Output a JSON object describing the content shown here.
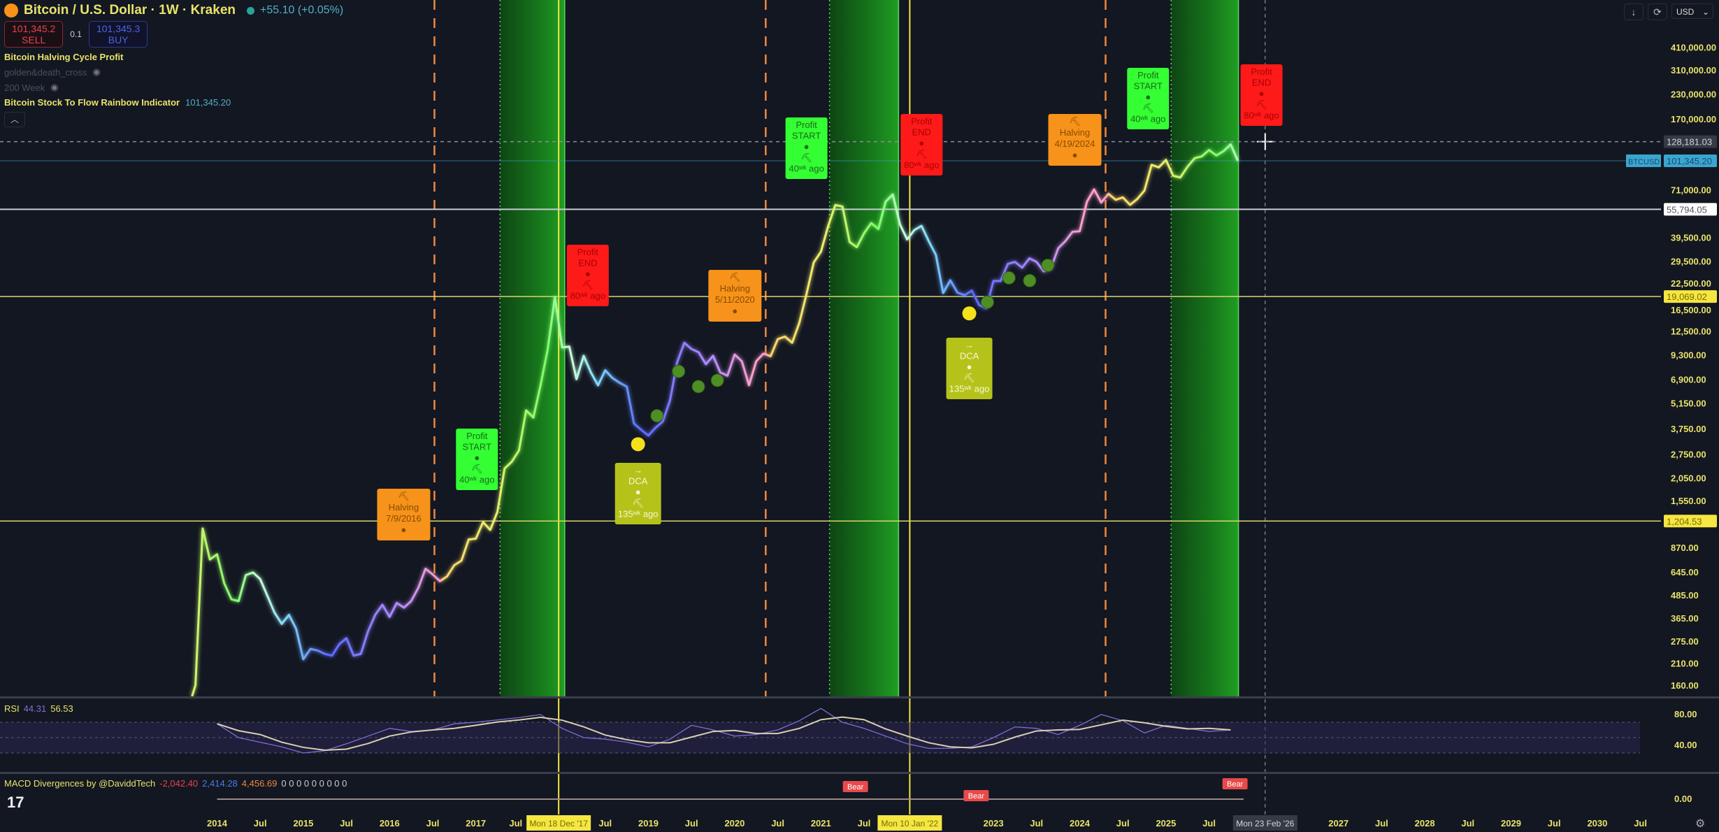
{
  "header": {
    "symbol_title": "Bitcoin / U.S. Dollar · 1W · Kraken",
    "change": "+55.10 (+0.05%)",
    "sell_price": "101,345.2",
    "sell_label": "SELL",
    "quantity": "0.1",
    "buy_price": "101,345.3",
    "buy_label": "BUY",
    "indicators": [
      {
        "name": "Bitcoin Halving Cycle Profit"
      },
      {
        "name": "golden&death_cross",
        "hidden": true
      },
      {
        "name": "200 Week",
        "hidden": true
      },
      {
        "name": "Bitcoin Stock To Flow Rainbow Indicator",
        "value": "101,345.20"
      }
    ]
  },
  "toolbar": {
    "currency": "USD"
  },
  "rsi": {
    "label": "RSI",
    "value1": "44.31",
    "value2": "56.53",
    "ticks": [
      "80.00",
      "40.00"
    ]
  },
  "macd": {
    "label": "MACD Divergences by @DaviddTech",
    "v1": "-2,042.40",
    "v2": "2,414.28",
    "v3": "4,456.69",
    "zeros": "0 0 0 0 0 0 0 0 0",
    "tick": "0.00",
    "bear_label": "Bear"
  },
  "colors": {
    "background": "#131722",
    "profit_zone": "#1fa81f",
    "halving_line": "#f0883e",
    "start_box": "#33ff33",
    "end_box": "#ff1a1a",
    "halving_box": "#f7931a",
    "dca_box": "#b5c21a",
    "axis_text": "#e8e36a"
  },
  "chart_data": {
    "type": "line",
    "yscale": "log",
    "ylim": [
      140,
      520000
    ],
    "xlim": [
      "2012-11",
      "2030-12"
    ],
    "price_ticks": [
      "410,000.00",
      "310,000.00",
      "230,000.00",
      "170,000.00",
      "71,000.00",
      "39,500.00",
      "29,500.00",
      "22,500.00",
      "16,500.00",
      "12,500.00",
      "9,300.00",
      "6,900.00",
      "5,150.00",
      "3,750.00",
      "2,750.00",
      "2,050.00",
      "1,550.00",
      "870.00",
      "645.00",
      "485.00",
      "365.00",
      "275.00",
      "210.00",
      "160.00"
    ],
    "price_tick_values": [
      410000,
      310000,
      230000,
      170000,
      71000,
      39500,
      29500,
      22500,
      16500,
      12500,
      9300,
      6900,
      5150,
      3750,
      2750,
      2050,
      1550,
      870,
      645,
      485,
      365,
      275,
      210,
      160
    ],
    "time_ticks": [
      "2014",
      "Jul",
      "2015",
      "Jul",
      "2016",
      "Jul",
      "2017",
      "Jul",
      "Jul",
      "2019",
      "Jul",
      "2020",
      "Jul",
      "2021",
      "Jul",
      "2023",
      "Jul",
      "2024",
      "Jul",
      "2025",
      "Jul",
      "2027",
      "Jul",
      "2028",
      "Jul",
      "2029",
      "Jul",
      "2030",
      "Jul"
    ],
    "time_tick_values": [
      2014,
      2014.5,
      2015,
      2015.5,
      2016,
      2016.5,
      2017,
      2017.5,
      2018.5,
      2019,
      2019.5,
      2020,
      2020.5,
      2021,
      2021.5,
      2023,
      2023.5,
      2024,
      2024.5,
      2025,
      2025.5,
      2027,
      2027.5,
      2028,
      2028.5,
      2029,
      2029.5,
      2030,
      2030.5
    ],
    "price_labels": [
      {
        "text": "128,181.03",
        "value": 128181.03,
        "style": "crosshair"
      },
      {
        "text": "101,345.20",
        "value": 101345.2,
        "style": "last",
        "tag": "BTCUSD"
      },
      {
        "text": "55,794.05",
        "value": 55794.05,
        "style": "white-line"
      },
      {
        "text": "19,069.02",
        "value": 19069.02,
        "style": "yellow-line"
      },
      {
        "text": "1,204.53",
        "value": 1204.53,
        "style": "yellow-line"
      }
    ],
    "date_labels": [
      {
        "text": "Mon 18 Dec '17",
        "date": 2017.96,
        "style": "yellow"
      },
      {
        "text": "Mon 10 Jan '22",
        "date": 2022.03,
        "style": "yellow"
      },
      {
        "text": "Mon 23 Feb '26",
        "date": 2026.15,
        "style": "crosshair"
      }
    ],
    "halvings": [
      2016.52,
      2020.36,
      2024.3
    ],
    "profit_zones": [
      [
        2017.28,
        2018.03
      ],
      [
        2021.1,
        2021.9
      ],
      [
        2025.06,
        2025.84
      ]
    ],
    "price_start": 2013.75,
    "price_step_months": 1,
    "price": [
      160,
      1100,
      750,
      800,
      560,
      460,
      450,
      620,
      640,
      590,
      480,
      390,
      340,
      380,
      320,
      220,
      250,
      245,
      235,
      230,
      265,
      285,
      230,
      235,
      310,
      380,
      430,
      370,
      440,
      415,
      450,
      530,
      670,
      625,
      575,
      610,
      700,
      740,
      960,
      970,
      1190,
      1080,
      1350,
      2300,
      2500,
      2870,
      4700,
      4300,
      6400,
      10000,
      19000,
      10200,
      10300,
      6900,
      9200,
      7500,
      6400,
      7700,
      7000,
      6600,
      6300,
      4000,
      3700,
      3450,
      3800,
      4100,
      5300,
      8500,
      10800,
      10000,
      9600,
      8300,
      9200,
      7500,
      7200,
      9350,
      8600,
      6400,
      8600,
      9450,
      9150,
      11300,
      11650,
      10800,
      13800,
      19700,
      29000,
      33100,
      45200,
      58800,
      57700,
      37300,
      35000,
      41500,
      47100,
      43800,
      61300,
      67000,
      46300,
      38500,
      43200,
      45500,
      37700,
      31800,
      19900,
      23300,
      20000,
      19400,
      20500,
      17200,
      16500,
      23100,
      23100,
      28500,
      29200,
      27200,
      30500,
      29200,
      26000,
      27000,
      34500,
      37700,
      42300,
      42600,
      61200,
      71300,
      60600,
      67500,
      62700,
      64600,
      58900,
      63300,
      70200,
      96400,
      93400,
      102400,
      84300,
      82500,
      94200,
      104600,
      107100,
      115700,
      108200,
      114000,
      124000,
      101345
    ],
    "annotations": [
      {
        "kind": "halving",
        "date": 2016.52,
        "lines": [
          "⛏",
          "Halving",
          "7/9/2016",
          "●"
        ]
      },
      {
        "kind": "start",
        "date": 2017.28,
        "lines": [
          "Profit",
          "START",
          "●",
          "⛏",
          "40ʷᵏ ago"
        ]
      },
      {
        "kind": "end",
        "date": 2018.03,
        "lines": [
          "Profit",
          "END",
          "●",
          "⛏",
          "80ʷᵏ ago"
        ]
      },
      {
        "kind": "dca",
        "date": 2018.88,
        "lines": [
          "→",
          "DCA",
          "●",
          "⛏",
          "135ʷᵏ ago"
        ]
      },
      {
        "kind": "halving",
        "date": 2020.36,
        "lines": [
          "⛏",
          "Halving",
          "5/11/2020",
          "●"
        ]
      },
      {
        "kind": "start",
        "date": 2021.1,
        "lines": [
          "Profit",
          "START",
          "●",
          "⛏",
          "40ʷᵏ ago"
        ]
      },
      {
        "kind": "end",
        "date": 2021.9,
        "lines": [
          "Profit",
          "END",
          "●",
          "⛏",
          "80ʷᵏ ago"
        ]
      },
      {
        "kind": "dca",
        "date": 2022.72,
        "lines": [
          "→",
          "DCA",
          "●",
          "⛏",
          "135ʷᵏ ago"
        ]
      },
      {
        "kind": "halving",
        "date": 2024.3,
        "lines": [
          "⛏",
          "Halving",
          "4/19/2024",
          "●"
        ]
      },
      {
        "kind": "start",
        "date": 2025.06,
        "lines": [
          "Profit",
          "START",
          "●",
          "⛏",
          "40ʷᵏ ago"
        ]
      },
      {
        "kind": "end",
        "date": 2025.84,
        "lines": [
          "Profit",
          "END",
          "●",
          "⛏",
          "80ʷᵏ ago"
        ]
      }
    ],
    "dca_dots": [
      [
        2018.88,
        3100
      ],
      [
        2022.72,
        15500
      ]
    ],
    "accumulation_dots": [
      [
        2019.1,
        4400
      ],
      [
        2019.35,
        7600
      ],
      [
        2019.58,
        6300
      ],
      [
        2019.8,
        6800
      ],
      [
        2022.93,
        17800
      ],
      [
        2023.18,
        24000
      ],
      [
        2023.42,
        23200
      ],
      [
        2023.63,
        28000
      ]
    ],
    "rsi_start": 2014.0,
    "rsi_step_years": 0.25,
    "rsi": [
      68,
      50,
      44,
      38,
      30,
      33,
      42,
      52,
      62,
      58,
      60,
      68,
      70,
      73,
      76,
      80,
      62,
      50,
      48,
      44,
      38,
      48,
      66,
      60,
      52,
      54,
      60,
      72,
      88,
      70,
      62,
      52,
      42,
      36,
      36,
      38,
      50,
      64,
      62,
      54,
      66,
      80,
      72,
      56,
      66,
      62,
      58,
      60
    ]
  }
}
